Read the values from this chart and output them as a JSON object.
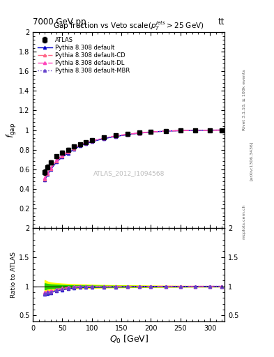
{
  "title_top": "7000 GeV pp",
  "title_top_right": "tt",
  "plot_title": "Gap fraction vs Veto scale($p_T^{jets}>$25 GeV)",
  "xlabel": "Q_{0} [GeV]",
  "ylabel_main": "f_{gap}",
  "ylabel_ratio": "Ratio to ATLAS",
  "watermark": "ATLAS_2012_I1094568",
  "rivet_label": "Rivet 3.1.10, ≥ 100k events",
  "inspire_label": "[arXiv:1306.3436]",
  "mcplots_label": "mcplots.cern.ch",
  "xlim": [
    0,
    325
  ],
  "ylim_main": [
    0.0,
    2.0
  ],
  "ylim_ratio": [
    0.4,
    2.0
  ],
  "yticks_main": [
    0.2,
    0.4,
    0.6,
    0.8,
    1.0,
    1.2,
    1.4,
    1.6,
    1.8,
    2.0
  ],
  "Q0_values": [
    20,
    25,
    30,
    40,
    50,
    60,
    70,
    80,
    90,
    100,
    120,
    140,
    160,
    180,
    200,
    225,
    250,
    275,
    300,
    320
  ],
  "atlas_data": [
    0.57,
    0.62,
    0.67,
    0.73,
    0.77,
    0.8,
    0.83,
    0.855,
    0.875,
    0.895,
    0.925,
    0.945,
    0.962,
    0.972,
    0.982,
    0.99,
    0.995,
    0.998,
    0.999,
    1.0
  ],
  "atlas_err": [
    0.03,
    0.025,
    0.022,
    0.02,
    0.018,
    0.016,
    0.015,
    0.014,
    0.013,
    0.012,
    0.01,
    0.009,
    0.008,
    0.007,
    0.006,
    0.005,
    0.004,
    0.003,
    0.003,
    0.002
  ],
  "pythia_default": [
    0.49,
    0.545,
    0.595,
    0.675,
    0.725,
    0.765,
    0.805,
    0.84,
    0.86,
    0.882,
    0.912,
    0.935,
    0.953,
    0.968,
    0.98,
    0.989,
    0.994,
    0.997,
    0.999,
    1.0
  ],
  "pythia_cd": [
    0.5,
    0.555,
    0.605,
    0.685,
    0.735,
    0.775,
    0.815,
    0.848,
    0.868,
    0.888,
    0.917,
    0.939,
    0.956,
    0.97,
    0.981,
    0.99,
    0.995,
    0.998,
    0.999,
    1.0
  ],
  "pythia_dl": [
    0.51,
    0.565,
    0.615,
    0.695,
    0.745,
    0.785,
    0.823,
    0.853,
    0.872,
    0.891,
    0.919,
    0.941,
    0.958,
    0.971,
    0.982,
    0.99,
    0.995,
    0.998,
    0.999,
    1.0
  ],
  "pythia_mbr": [
    0.5,
    0.555,
    0.605,
    0.683,
    0.733,
    0.773,
    0.813,
    0.847,
    0.867,
    0.887,
    0.916,
    0.938,
    0.956,
    0.97,
    0.981,
    0.99,
    0.995,
    0.998,
    0.999,
    1.0
  ],
  "color_default": "#0000cc",
  "color_cd": "#ff6688",
  "color_dl": "#ff44bb",
  "color_mbr": "#6644cc",
  "color_atlas": "#000000",
  "bg_color": "#ffffff",
  "ratio_band_color_yellow": "#ffff00",
  "ratio_band_color_green": "#00cc00"
}
